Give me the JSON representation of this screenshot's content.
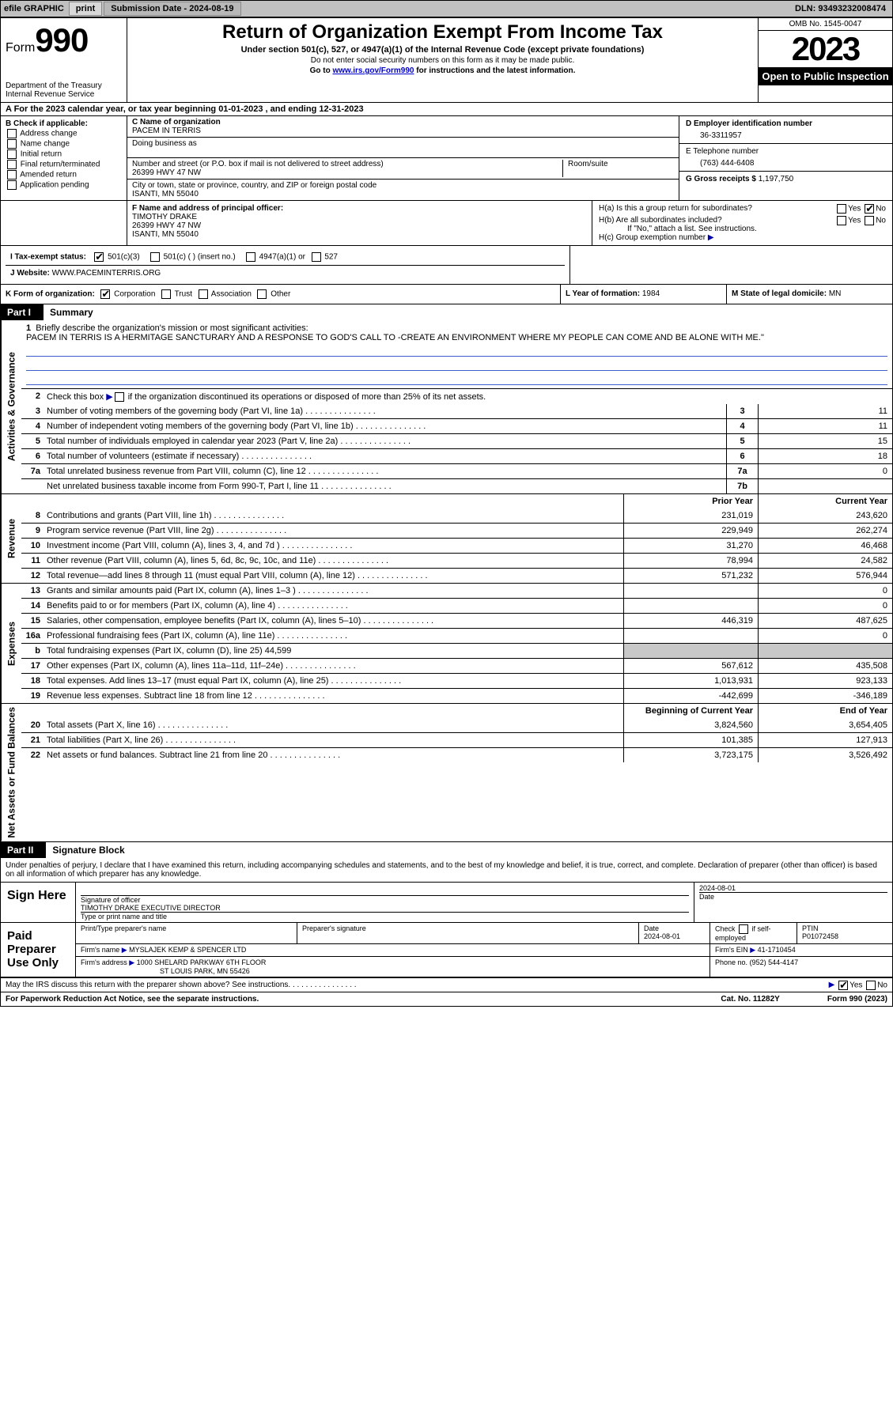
{
  "topbar": {
    "efile_label": "efile GRAPHIC",
    "print_btn": "print",
    "submission_label": "Submission Date - 2024-08-19",
    "dln": "DLN: 93493232008474"
  },
  "header": {
    "form_label": "Form",
    "form_number": "990",
    "dept": "Department of the Treasury\nInternal Revenue Service",
    "title": "Return of Organization Exempt From Income Tax",
    "sub": "Under section 501(c), 527, or 4947(a)(1) of the Internal Revenue Code (except private foundations)",
    "note1": "Do not enter social security numbers on this form as it may be made public.",
    "note2_pre": "Go to ",
    "note2_link": "www.irs.gov/Form990",
    "note2_post": " for instructions and the latest information.",
    "omb": "OMB No. 1545-0047",
    "year": "2023",
    "inspect": "Open to Public Inspection"
  },
  "row_a": "A For the 2023 calendar year, or tax year beginning 01-01-2023   , and ending 12-31-2023",
  "section_b": {
    "label": "B Check if applicable:",
    "items": [
      "Address change",
      "Name change",
      "Initial return",
      "Final return/terminated",
      "Amended return",
      "Application pending"
    ]
  },
  "section_c": {
    "name_label": "C Name of organization",
    "name": "PACEM IN TERRIS",
    "dba_label": "Doing business as",
    "addr_label": "Number and street (or P.O. box if mail is not delivered to street address)",
    "addr": "26399 HWY 47 NW",
    "room_label": "Room/suite",
    "city_label": "City or town, state or province, country, and ZIP or foreign postal code",
    "city": "ISANTI, MN  55040"
  },
  "section_d": {
    "ein_label": "D Employer identification number",
    "ein": "36-3311957",
    "phone_label": "E Telephone number",
    "phone": "(763) 444-6408",
    "gross_label": "G Gross receipts $",
    "gross": "1,197,750"
  },
  "section_f": {
    "label": "F  Name and address of principal officer:",
    "name": "TIMOTHY DRAKE",
    "addr1": "26399 HWY 47 NW",
    "addr2": "ISANTI, MN  55040"
  },
  "section_h": {
    "ha": "H(a)  Is this a group return for subordinates?",
    "hb": "H(b)  Are all subordinates included?",
    "hb_note": "If \"No,\" attach a list. See instructions.",
    "hc": "H(c)  Group exemption number ",
    "yes": "Yes",
    "no": "No"
  },
  "row_i": {
    "label": "I  Tax-exempt status:",
    "opts": [
      "501(c)(3)",
      "501(c) (  ) (insert no.)",
      "4947(a)(1) or",
      "527"
    ]
  },
  "row_j": {
    "label": "J  Website: ",
    "value": "WWW.PACEMINTERRIS.ORG"
  },
  "row_k": {
    "label": "K Form of organization:",
    "opts": [
      "Corporation",
      "Trust",
      "Association",
      "Other"
    ],
    "l_label": "L Year of formation:",
    "l_val": "1984",
    "m_label": "M State of legal domicile:",
    "m_val": "MN"
  },
  "part1": {
    "num": "Part I",
    "title": "Summary",
    "mission_label": "Briefly describe the organization's mission or most significant activities:",
    "mission": "PACEM IN TERRIS IS A HERMITAGE SANCTURARY AND A RESPONSE TO GOD'S CALL TO -CREATE AN ENVIRONMENT WHERE MY PEOPLE CAN COME AND BE ALONE WITH ME.\"",
    "line2": "Check this box      if the organization discontinued its operations or disposed of more than 25% of its net assets.",
    "sections": {
      "gov": "Activities & Governance",
      "rev": "Revenue",
      "exp": "Expenses",
      "net": "Net Assets or Fund Balances"
    },
    "col_prior": "Prior Year",
    "col_current": "Current Year",
    "col_boy": "Beginning of Current Year",
    "col_eoy": "End of Year",
    "lines_gov": [
      {
        "n": "3",
        "d": "Number of voting members of the governing body (Part VI, line 1a)",
        "box": "3",
        "v": "11"
      },
      {
        "n": "4",
        "d": "Number of independent voting members of the governing body (Part VI, line 1b)",
        "box": "4",
        "v": "11"
      },
      {
        "n": "5",
        "d": "Total number of individuals employed in calendar year 2023 (Part V, line 2a)",
        "box": "5",
        "v": "15"
      },
      {
        "n": "6",
        "d": "Total number of volunteers (estimate if necessary)",
        "box": "6",
        "v": "18"
      },
      {
        "n": "7a",
        "d": "Total unrelated business revenue from Part VIII, column (C), line 12",
        "box": "7a",
        "v": "0"
      },
      {
        "n": "",
        "d": "Net unrelated business taxable income from Form 990-T, Part I, line 11",
        "box": "7b",
        "v": ""
      }
    ],
    "lines_rev": [
      {
        "n": "8",
        "d": "Contributions and grants (Part VIII, line 1h)",
        "p": "231,019",
        "c": "243,620"
      },
      {
        "n": "9",
        "d": "Program service revenue (Part VIII, line 2g)",
        "p": "229,949",
        "c": "262,274"
      },
      {
        "n": "10",
        "d": "Investment income (Part VIII, column (A), lines 3, 4, and 7d )",
        "p": "31,270",
        "c": "46,468"
      },
      {
        "n": "11",
        "d": "Other revenue (Part VIII, column (A), lines 5, 6d, 8c, 9c, 10c, and 11e)",
        "p": "78,994",
        "c": "24,582"
      },
      {
        "n": "12",
        "d": "Total revenue—add lines 8 through 11 (must equal Part VIII, column (A), line 12)",
        "p": "571,232",
        "c": "576,944"
      }
    ],
    "lines_exp": [
      {
        "n": "13",
        "d": "Grants and similar amounts paid (Part IX, column (A), lines 1–3 )",
        "p": "",
        "c": "0"
      },
      {
        "n": "14",
        "d": "Benefits paid to or for members (Part IX, column (A), line 4)",
        "p": "",
        "c": "0"
      },
      {
        "n": "15",
        "d": "Salaries, other compensation, employee benefits (Part IX, column (A), lines 5–10)",
        "p": "446,319",
        "c": "487,625"
      },
      {
        "n": "16a",
        "d": "Professional fundraising fees (Part IX, column (A), line 11e)",
        "p": "",
        "c": "0"
      },
      {
        "n": "b",
        "d": "Total fundraising expenses (Part IX, column (D), line 25) 44,599",
        "p": "shade",
        "c": "shade"
      },
      {
        "n": "17",
        "d": "Other expenses (Part IX, column (A), lines 11a–11d, 11f–24e)",
        "p": "567,612",
        "c": "435,508"
      },
      {
        "n": "18",
        "d": "Total expenses. Add lines 13–17 (must equal Part IX, column (A), line 25)",
        "p": "1,013,931",
        "c": "923,133"
      },
      {
        "n": "19",
        "d": "Revenue less expenses. Subtract line 18 from line 12",
        "p": "-442,699",
        "c": "-346,189"
      }
    ],
    "lines_net": [
      {
        "n": "20",
        "d": "Total assets (Part X, line 16)",
        "p": "3,824,560",
        "c": "3,654,405"
      },
      {
        "n": "21",
        "d": "Total liabilities (Part X, line 26)",
        "p": "101,385",
        "c": "127,913"
      },
      {
        "n": "22",
        "d": "Net assets or fund balances. Subtract line 21 from line 20",
        "p": "3,723,175",
        "c": "3,526,492"
      }
    ]
  },
  "part2": {
    "num": "Part II",
    "title": "Signature Block",
    "intro": "Under penalties of perjury, I declare that I have examined this return, including accompanying schedules and statements, and to the best of my knowledge and belief, it is true, correct, and complete. Declaration of preparer (other than officer) is based on all information of which preparer has any knowledge."
  },
  "sign": {
    "left": "Sign Here",
    "sig_label": "Signature of officer",
    "name": "TIMOTHY DRAKE  EXECUTIVE DIRECTOR",
    "name_label": "Type or print name and title",
    "date_label": "Date",
    "date": "2024-08-01"
  },
  "preparer": {
    "left": "Paid Preparer Use Only",
    "name_label": "Print/Type preparer's name",
    "sig_label": "Preparer's signature",
    "date_label": "Date",
    "date": "2024-08-01",
    "check_label": "Check       if self-employed",
    "ptin_label": "PTIN",
    "ptin": "P01072458",
    "firm_label": "Firm's name   ",
    "firm": "MYSLAJEK KEMP & SPENCER LTD",
    "ein_label": "Firm's EIN  ",
    "ein": "41-1710454",
    "addr_label": "Firm's address  ",
    "addr1": "1000 SHELARD PARKWAY 6TH FLOOR",
    "addr2": "ST LOUIS PARK, MN  55426",
    "phone_label": "Phone no.",
    "phone": "(952) 544-4147"
  },
  "discuss": "May the IRS discuss this return with the preparer shown above? See instructions.",
  "footer": {
    "left": "For Paperwork Reduction Act Notice, see the separate instructions.",
    "mid": "Cat. No. 11282Y",
    "right": "Form 990 (2023)"
  }
}
